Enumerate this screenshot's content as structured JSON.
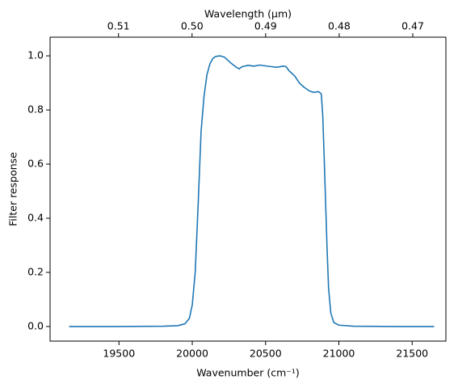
{
  "chart_data": {
    "type": "line",
    "xlabel": "Wavenumber (cm⁻¹)",
    "ylabel": "Filter response",
    "x2label": "Wavelength (μm)",
    "color": "#1f77b4",
    "x": [
      19160,
      19500,
      19800,
      19900,
      19950,
      19980,
      20000,
      20020,
      20040,
      20060,
      20080,
      20100,
      20120,
      20140,
      20160,
      20190,
      20220,
      20260,
      20300,
      20320,
      20340,
      20380,
      20420,
      20460,
      20500,
      20540,
      20580,
      20620,
      20640,
      20660,
      20700,
      20730,
      20760,
      20800,
      20830,
      20860,
      20880,
      20890,
      20900,
      20910,
      20920,
      20930,
      20945,
      20965,
      21000,
      21100,
      21400,
      21650
    ],
    "values": [
      0,
      0,
      0.001,
      0.003,
      0.01,
      0.03,
      0.08,
      0.2,
      0.45,
      0.72,
      0.85,
      0.93,
      0.97,
      0.99,
      0.998,
      1.0,
      0.995,
      0.975,
      0.958,
      0.952,
      0.96,
      0.965,
      0.962,
      0.966,
      0.963,
      0.96,
      0.958,
      0.962,
      0.96,
      0.945,
      0.925,
      0.9,
      0.885,
      0.87,
      0.865,
      0.868,
      0.86,
      0.78,
      0.62,
      0.45,
      0.28,
      0.14,
      0.05,
      0.015,
      0.005,
      0.001,
      0,
      0
    ],
    "xlim": [
      19030,
      21730
    ],
    "xticks": [
      19500,
      20000,
      20500,
      21000,
      21500
    ],
    "x2lim": [
      0.5193,
      0.4655
    ],
    "x2ticks": [
      0.51,
      {
        "value": 0.5,
        "label": "0.50"
      },
      0.49,
      0.48,
      0.47
    ],
    "ylim": [
      -0.054,
      1.069
    ],
    "yticks": [
      {
        "value": 0,
        "label": "0.0"
      },
      0.2,
      0.4,
      0.6,
      0.8,
      {
        "value": 1,
        "label": "1.0"
      }
    ]
  }
}
